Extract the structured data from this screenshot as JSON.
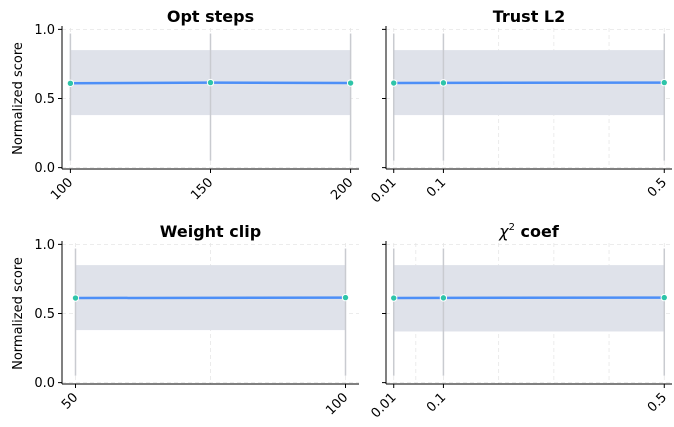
{
  "figure": {
    "ylabel": "Normalized score"
  },
  "chart_data": [
    {
      "type": "line",
      "title": "Opt steps",
      "title_sup": "",
      "ylabel": "Normalized score",
      "x": [
        100,
        150,
        200
      ],
      "xticks": [
        "100",
        "150",
        "200"
      ],
      "yticks": [
        "0.0",
        "0.5",
        "1.0"
      ],
      "xlim": [
        97,
        203
      ],
      "ylim": [
        -0.01,
        1.01
      ],
      "xscale": "linear",
      "minor_x_grid": [],
      "series": [
        {
          "values": [
            0.61,
            0.615,
            0.612
          ]
        }
      ],
      "band": {
        "lower": 0.38,
        "upper": 0.85
      },
      "error": {
        "lower": 0.05,
        "upper": 0.97
      },
      "grid": true
    },
    {
      "type": "line",
      "title": "Trust L2",
      "title_sup": "",
      "ylabel": "",
      "x": [
        0.01,
        0.1,
        0.5
      ],
      "xticks": [
        "0.01",
        "0.1",
        "0.5"
      ],
      "yticks": [
        "",
        "",
        ""
      ],
      "xlim": [
        -0.004,
        0.514
      ],
      "ylim": [
        -0.01,
        1.01
      ],
      "xscale": "linear",
      "minor_x_grid": [
        0.2,
        0.3,
        0.4
      ],
      "series": [
        {
          "values": [
            0.612,
            0.613,
            0.615
          ]
        }
      ],
      "band": {
        "lower": 0.38,
        "upper": 0.85
      },
      "error": {
        "lower": 0.05,
        "upper": 0.97
      },
      "grid": true
    },
    {
      "type": "line",
      "title": "Weight clip",
      "title_sup": "",
      "ylabel": "Normalized score",
      "x": [
        50,
        100
      ],
      "xticks": [
        "50",
        "100"
      ],
      "yticks": [
        "0.0",
        "0.5",
        "1.0"
      ],
      "xlim": [
        47.5,
        102.5
      ],
      "ylim": [
        -0.01,
        1.01
      ],
      "xscale": "linear",
      "minor_x_grid": [
        75
      ],
      "series": [
        {
          "values": [
            0.612,
            0.615
          ]
        }
      ],
      "band": {
        "lower": 0.38,
        "upper": 0.85
      },
      "error": {
        "lower": 0.05,
        "upper": 0.97
      },
      "grid": true
    },
    {
      "type": "line",
      "title": "χ",
      "title_sup": "2",
      "title_rest": " coef",
      "ylabel": "",
      "x": [
        0.01,
        0.1,
        0.5
      ],
      "xticks": [
        "0.01",
        "0.1",
        "0.5"
      ],
      "yticks": [
        "",
        "",
        ""
      ],
      "xlim": [
        -0.004,
        0.514
      ],
      "ylim": [
        -0.01,
        1.01
      ],
      "xscale": "linear",
      "minor_x_grid": [
        0.05,
        0.2,
        0.3,
        0.4
      ],
      "series": [
        {
          "values": [
            0.612,
            0.613,
            0.615
          ]
        }
      ],
      "band": {
        "lower": 0.37,
        "upper": 0.85
      },
      "error": {
        "lower": 0.05,
        "upper": 0.97
      },
      "grid": true
    }
  ],
  "colors": {
    "line": "#4d8ff7",
    "marker_fill": "#2ec4a8",
    "marker_edge": "#ffffff",
    "band": "#dfe2ea",
    "errorbar": "#c9cbd0",
    "axis": "#000000",
    "grid": "#e6e6e6"
  }
}
